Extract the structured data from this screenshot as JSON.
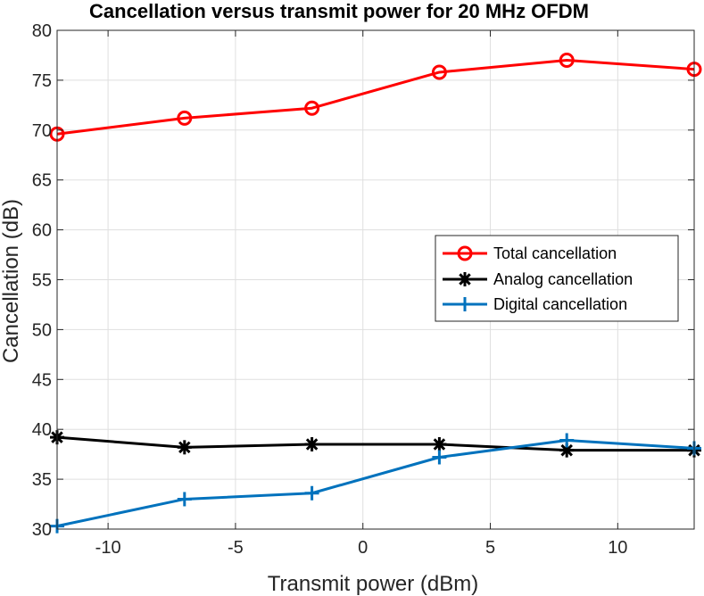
{
  "chart_data": {
    "type": "line",
    "title": "Cancellation versus transmit power for 20 MHz OFDM",
    "xlabel": "Transmit power (dBm)",
    "ylabel": "Cancellation (dB)",
    "xlim": [
      -12,
      13
    ],
    "ylim": [
      30,
      80
    ],
    "xticks": [
      -10,
      -5,
      0,
      5,
      10
    ],
    "yticks": [
      30,
      35,
      40,
      45,
      50,
      55,
      60,
      65,
      70,
      75,
      80
    ],
    "grid": true,
    "legend_position": "center-right",
    "x": [
      -12,
      -7,
      -2,
      3,
      8,
      13
    ],
    "series": [
      {
        "name": "Total cancellation",
        "color": "#ff0000",
        "marker": "circle",
        "values": [
          69.6,
          71.2,
          72.2,
          75.8,
          77.0,
          76.1
        ]
      },
      {
        "name": "Analog cancellation",
        "color": "#000000",
        "marker": "asterisk",
        "values": [
          39.2,
          38.2,
          38.5,
          38.5,
          37.9,
          37.9
        ]
      },
      {
        "name": "Digital cancellation",
        "color": "#0072bd",
        "marker": "plus",
        "values": [
          30.3,
          33.0,
          33.6,
          37.2,
          38.9,
          38.1
        ]
      }
    ]
  }
}
